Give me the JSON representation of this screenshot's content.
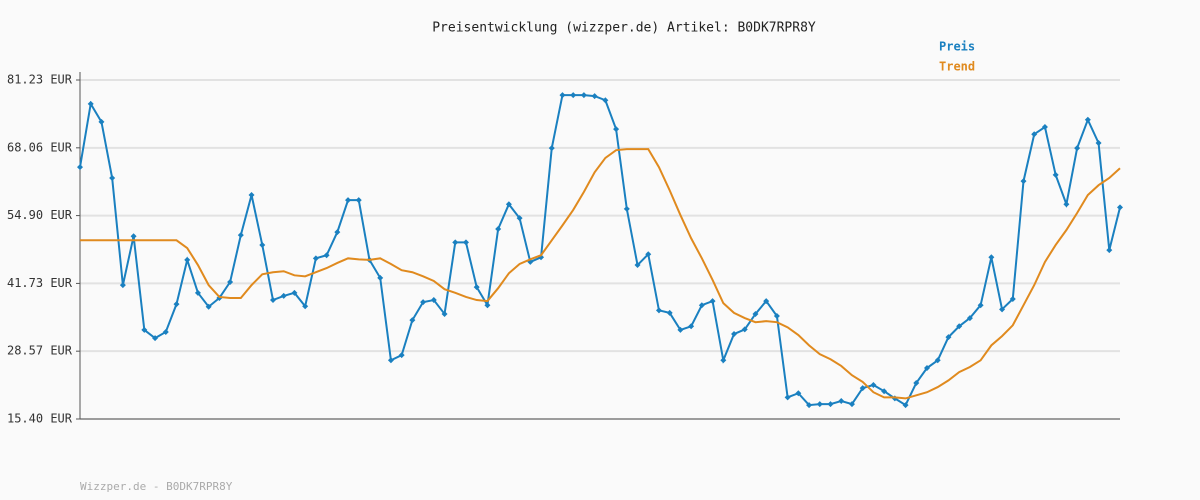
{
  "chart_data": {
    "type": "line",
    "title": "Preisentwicklung (wizzper.de) Artikel: B0DK7RPR8Y",
    "footer": "Wizzper.de - B0DK7RPR8Y",
    "ylim": [
      15.4,
      81.23
    ],
    "yticks": [
      {
        "value": 15.4,
        "label": "15.40 EUR"
      },
      {
        "value": 28.57,
        "label": "28.57 EUR"
      },
      {
        "value": 41.73,
        "label": "41.73 EUR"
      },
      {
        "value": 54.9,
        "label": "54.90 EUR"
      },
      {
        "value": 68.06,
        "label": "68.06 EUR"
      },
      {
        "value": 81.23,
        "label": "81.23 EUR"
      }
    ],
    "grid": true,
    "legend": "top-right",
    "series": [
      {
        "name": "Preis",
        "color": "#1a80c0",
        "markers": true,
        "values": [
          64.3,
          76.6,
          73.1,
          62.2,
          41.4,
          50.9,
          32.7,
          31.1,
          32.3,
          37.7,
          46.3,
          39.9,
          37.2,
          38.9,
          42.0,
          51.1,
          58.9,
          49.2,
          38.5,
          39.3,
          39.9,
          37.3,
          46.6,
          47.2,
          51.7,
          57.9,
          57.9,
          46.3,
          42.8,
          26.8,
          27.8,
          34.6,
          38.1,
          38.5,
          35.8,
          49.7,
          49.7,
          41.0,
          37.5,
          52.3,
          57.1,
          54.4,
          45.9,
          46.8,
          68.0,
          78.3,
          78.3,
          78.3,
          78.1,
          77.3,
          71.7,
          56.2,
          45.3,
          47.4,
          36.5,
          36.0,
          32.7,
          33.4,
          37.5,
          38.3,
          26.8,
          31.9,
          32.8,
          35.8,
          38.3,
          35.4,
          19.6,
          20.4,
          18.1,
          18.3,
          18.3,
          18.9,
          18.3,
          21.4,
          22.0,
          20.8,
          19.4,
          18.1,
          22.4,
          25.3,
          26.8,
          31.3,
          33.4,
          35.0,
          37.5,
          46.8,
          36.7,
          38.7,
          61.6,
          70.7,
          72.1,
          62.8,
          57.1,
          68.0,
          73.5,
          69.0,
          48.2,
          56.5
        ]
      },
      {
        "name": "Trend",
        "color": "#e08a1e",
        "markers": false,
        "values": [
          50.1,
          50.1,
          50.1,
          50.1,
          50.1,
          50.1,
          50.1,
          50.1,
          50.1,
          50.1,
          48.6,
          45.3,
          41.4,
          39.1,
          38.9,
          38.9,
          41.4,
          43.5,
          43.9,
          44.1,
          43.3,
          43.1,
          43.9,
          44.7,
          45.7,
          46.6,
          46.4,
          46.3,
          46.6,
          45.5,
          44.3,
          43.9,
          43.1,
          42.2,
          40.6,
          39.9,
          39.1,
          38.5,
          38.3,
          40.8,
          43.7,
          45.5,
          46.4,
          47.2,
          50.1,
          53.0,
          56.0,
          59.5,
          63.3,
          66.1,
          67.6,
          67.8,
          67.8,
          67.8,
          64.3,
          59.8,
          55.0,
          50.5,
          46.6,
          42.4,
          37.9,
          36.0,
          35.0,
          34.2,
          34.4,
          34.2,
          33.2,
          31.7,
          29.7,
          28.0,
          27.0,
          25.7,
          23.9,
          22.6,
          20.6,
          19.6,
          19.6,
          19.4,
          20.0,
          20.6,
          21.6,
          22.9,
          24.5,
          25.5,
          26.8,
          29.7,
          31.5,
          33.6,
          37.5,
          41.4,
          45.9,
          49.2,
          52.1,
          55.4,
          58.9,
          60.8,
          62.2,
          64.1
        ]
      }
    ]
  }
}
